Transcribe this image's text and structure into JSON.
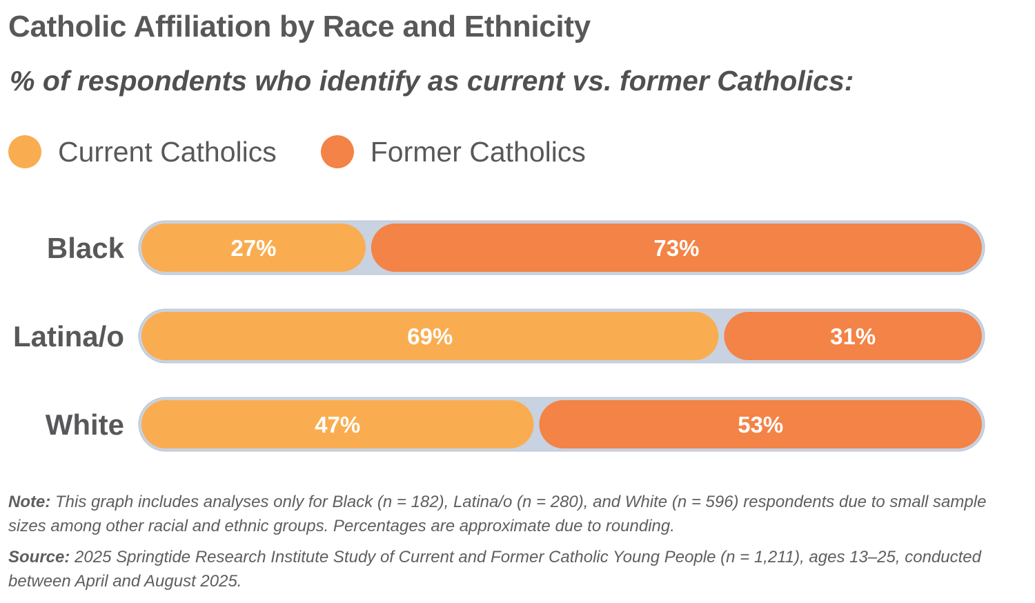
{
  "title": "Catholic Affiliation by Race and Ethnicity",
  "subtitle": "% of respondents who identify as current vs. former Catholics:",
  "colors": {
    "current": "#f9ad50",
    "former": "#f38346",
    "track": "#c8d2e0",
    "label_text": "#ffffff",
    "category_text": "#58585a"
  },
  "legend": [
    {
      "name": "Current Catholics",
      "color": "#f9ad50"
    },
    {
      "name": "Former Catholics",
      "color": "#f38346"
    }
  ],
  "chart_data": {
    "type": "bar",
    "orientation": "horizontal",
    "stacked": true,
    "title": "Catholic Affiliation by Race and Ethnicity",
    "subtitle": "% of respondents who identify as current vs. former Catholics:",
    "categories": [
      "Black",
      "Latina/o",
      "White"
    ],
    "series": [
      {
        "name": "Current Catholics",
        "values": [
          27,
          69,
          47
        ],
        "labels": [
          "27%",
          "69%",
          "47%"
        ]
      },
      {
        "name": "Former Catholics",
        "values": [
          73,
          31,
          53
        ],
        "labels": [
          "73%",
          "31%",
          "53%"
        ]
      }
    ],
    "xlabel": "",
    "ylabel": "",
    "xlim": [
      0,
      100
    ],
    "grid": false,
    "legend_position": "top-left"
  },
  "notes": {
    "note_label": "Note:",
    "note_text": " This graph includes analyses only for Black (n = 182), Latina/o (n = 280), and White (n = 596) respondents due to small sample sizes among other racial and ethnic groups. Percentages are approximate due to rounding.",
    "source_label": "Source:",
    "source_text": " 2025 Springtide Research Institute Study of Current and Former Catholic Young People (n = 1,211), ages 13–25, conducted between April and August 2025."
  }
}
